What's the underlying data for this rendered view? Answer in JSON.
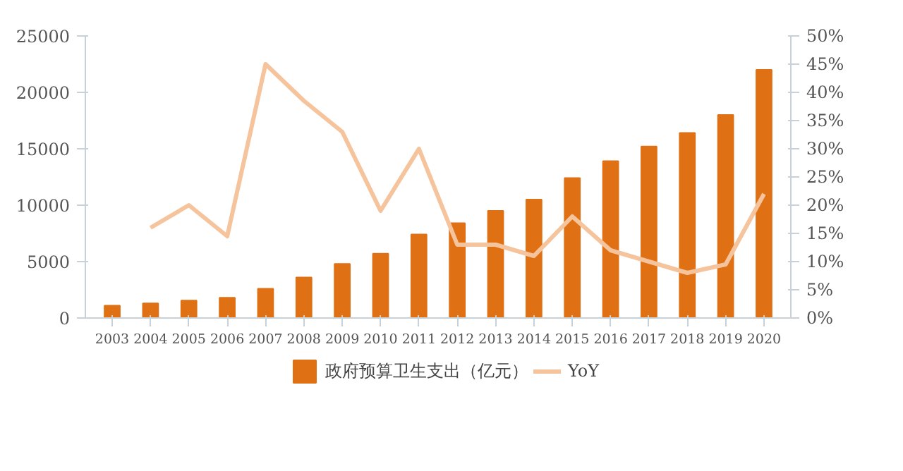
{
  "chart_data": {
    "type": "bar",
    "categories": [
      "2003",
      "2004",
      "2005",
      "2006",
      "2007",
      "2008",
      "2009",
      "2010",
      "2011",
      "2012",
      "2013",
      "2014",
      "2015",
      "2016",
      "2017",
      "2018",
      "2019",
      "2020"
    ],
    "series": [
      {
        "name": "政府预算卫生支出（亿元）",
        "color": "#e07014",
        "values": [
          1100,
          1300,
          1550,
          1800,
          2600,
          3600,
          4800,
          5700,
          7400,
          8400,
          9500,
          10500,
          12400,
          13900,
          15200,
          16400,
          18000,
          22000
        ]
      },
      {
        "name": "YoY",
        "type": "line",
        "axis": "y2",
        "color": "#f5c49c",
        "values": [
          null,
          16,
          20,
          14.5,
          45,
          38.5,
          33,
          19,
          30,
          13,
          13,
          11,
          18,
          12,
          10,
          8,
          9.5,
          22
        ]
      }
    ],
    "ylim": [
      0,
      25000
    ],
    "yticks": [
      0,
      5000,
      10000,
      15000,
      20000,
      25000
    ],
    "y2lim": [
      0,
      50
    ],
    "y2ticks": [
      {
        "value": 0,
        "label": "0%"
      },
      {
        "value": 5,
        "label": "5%"
      },
      {
        "value": 10,
        "label": "10%"
      },
      {
        "value": 15,
        "label": "15%"
      },
      {
        "value": 20,
        "label": "20%"
      },
      {
        "value": 25,
        "label": "25%"
      },
      {
        "value": 30,
        "label": "30%"
      },
      {
        "value": 35,
        "label": "35%"
      },
      {
        "value": 40,
        "label": "40%"
      },
      {
        "value": 45,
        "label": "45%"
      },
      {
        "value": 50,
        "label": "50%"
      }
    ],
    "grid": false,
    "legend": "bottom"
  }
}
